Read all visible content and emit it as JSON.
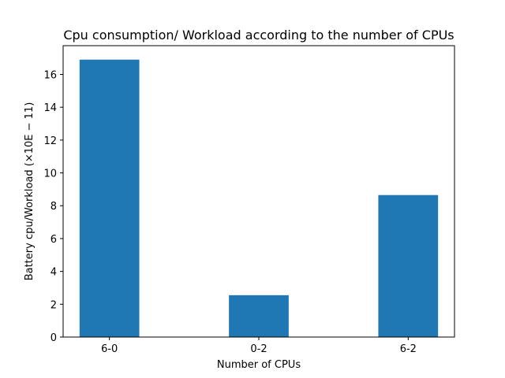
{
  "chart_data": {
    "type": "bar",
    "title": "Cpu consumption/ Workload according to the number of CPUs",
    "xlabel": "Number of CPUs",
    "ylabel": "Battery cpu/Workload (×10E − 11)",
    "categories": [
      "6-0",
      "0-2",
      "6-2"
    ],
    "values": [
      16.9,
      2.55,
      8.65
    ],
    "ylim": [
      0,
      17.75
    ],
    "yticks": [
      0,
      2,
      4,
      6,
      8,
      10,
      12,
      14,
      16
    ],
    "bar_color": "#1f77b4",
    "grid": false,
    "legend": "none"
  }
}
